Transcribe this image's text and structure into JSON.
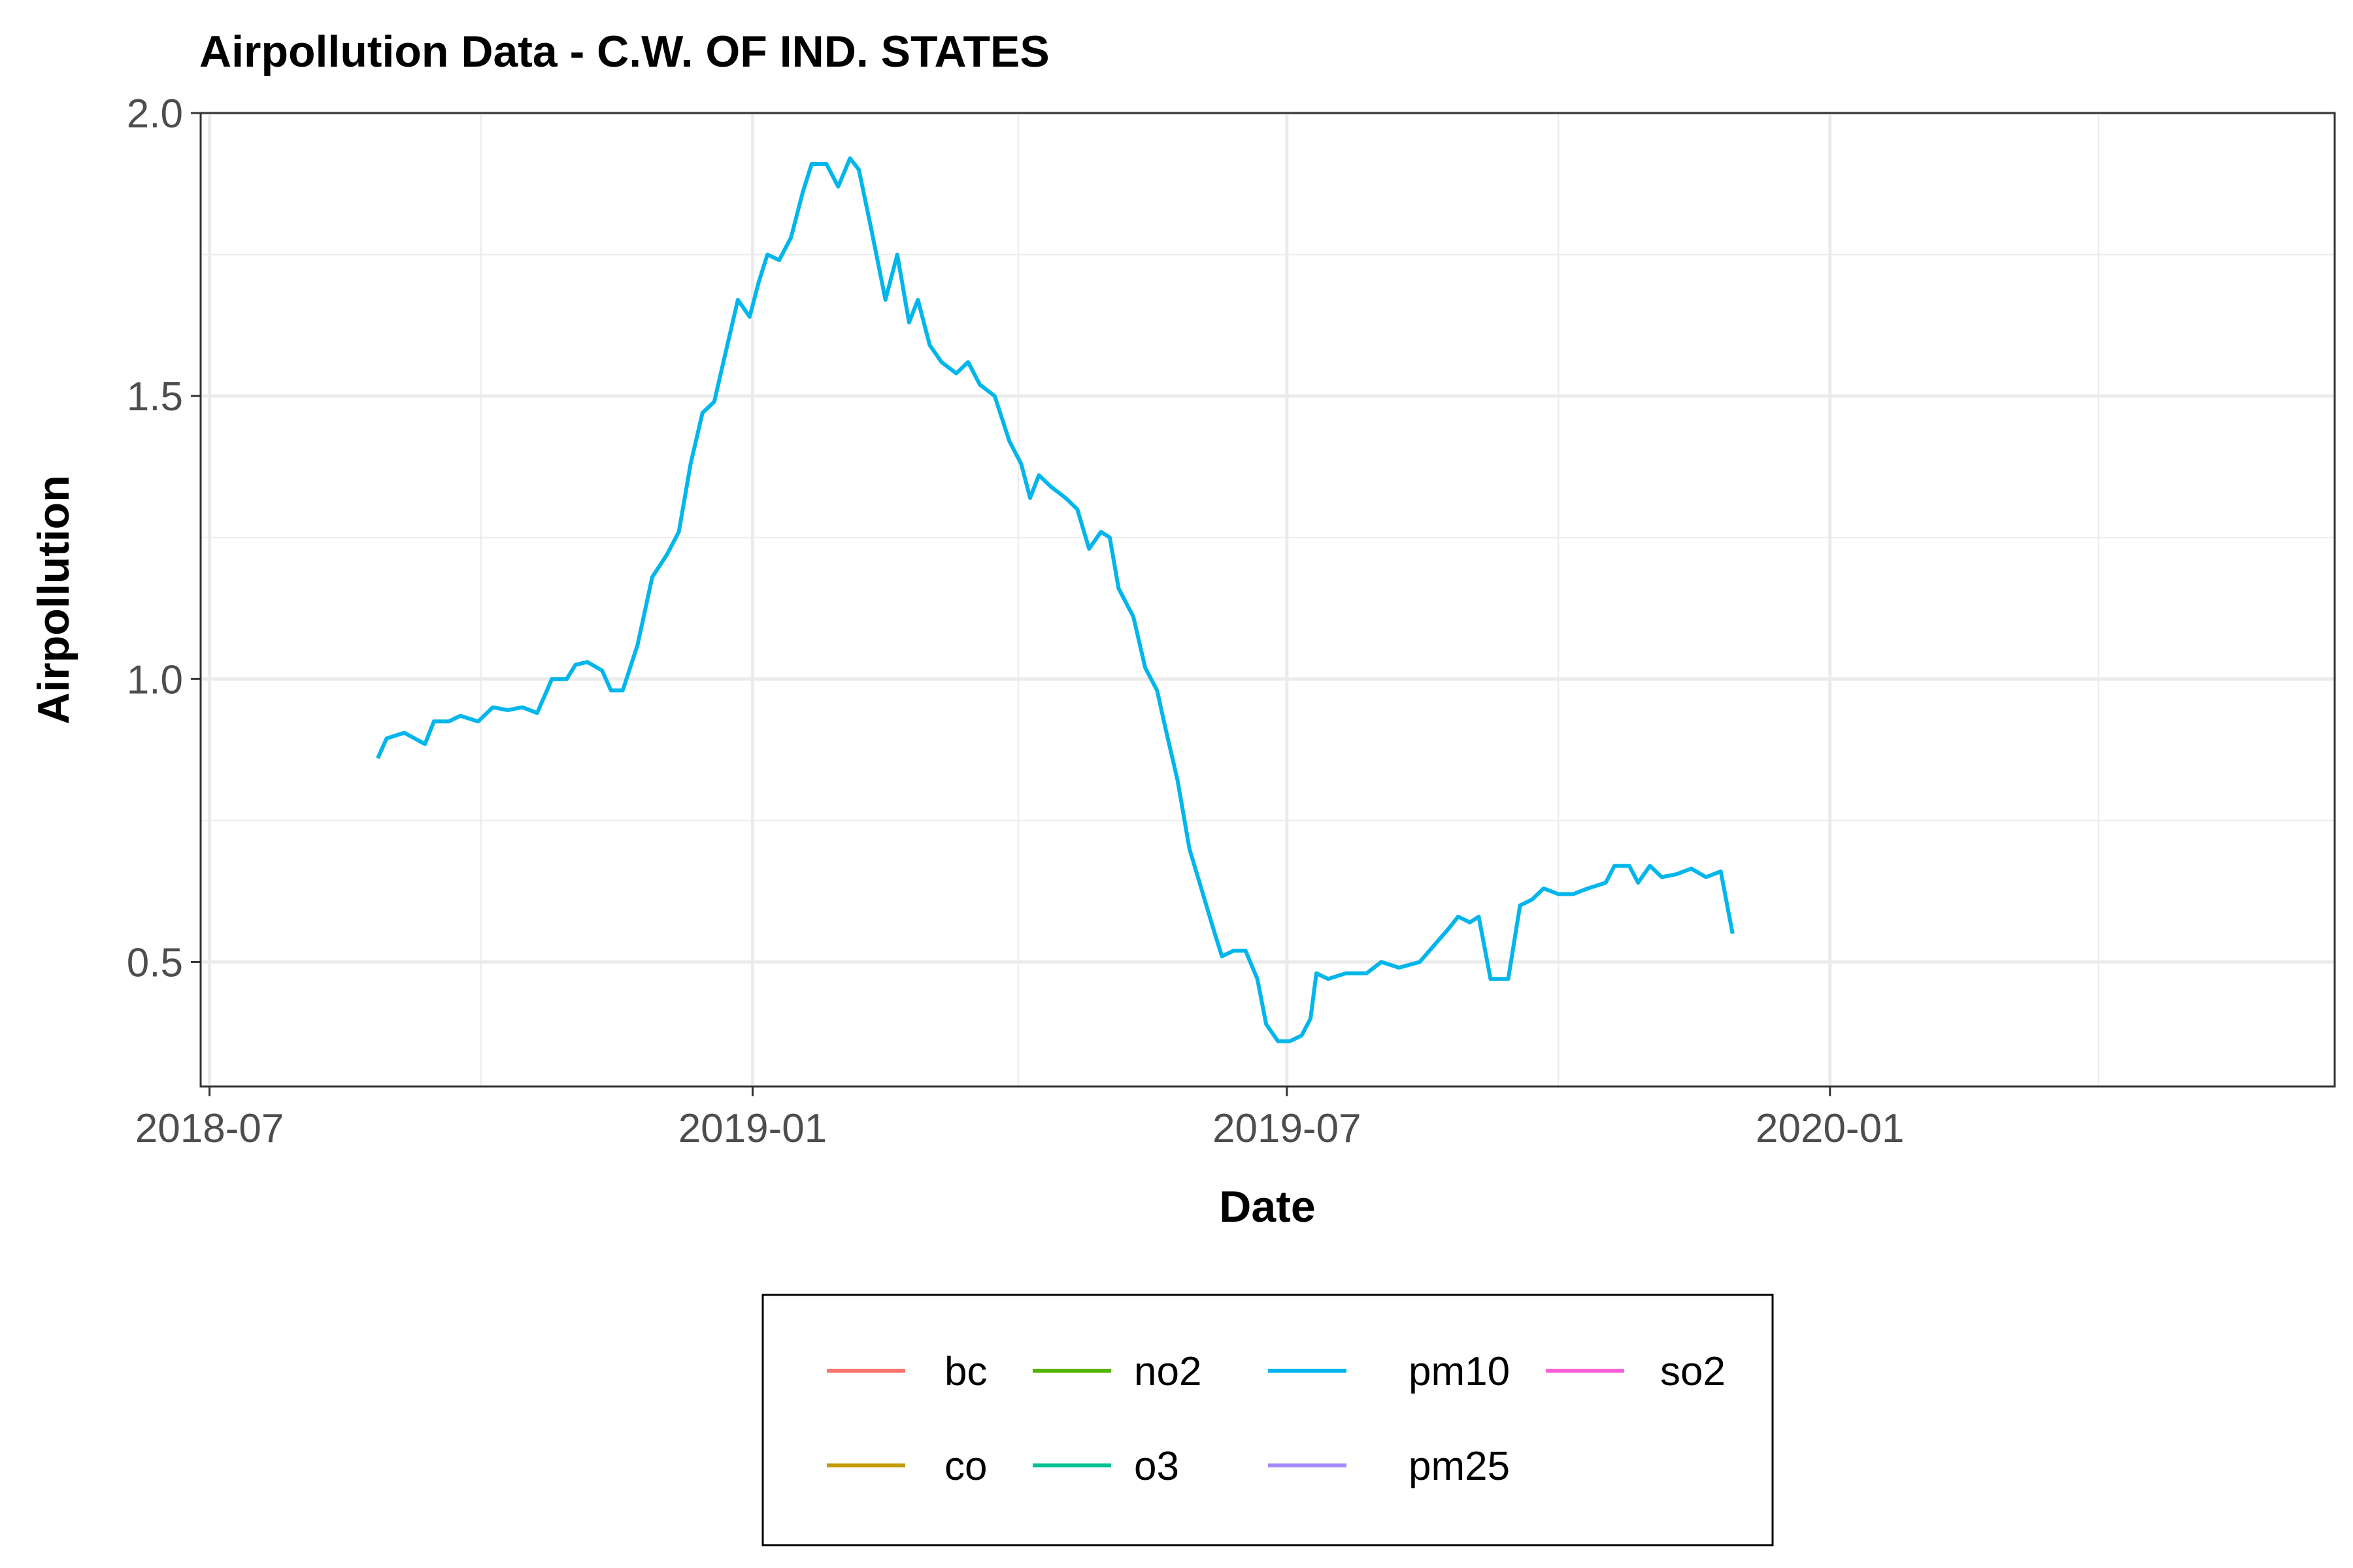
{
  "chart_data": {
    "type": "line",
    "title": "Airpollution Data - C.W. OF IND. STATES",
    "xlabel": "Date",
    "ylabel": "Airpollution",
    "x_type": "date",
    "xlim": [
      "2018-06-28",
      "2020-06-20"
    ],
    "ylim": [
      0.28,
      2.0
    ],
    "x_ticks": [
      {
        "date": "2018-07-01",
        "label": "2018-07"
      },
      {
        "date": "2019-01-01",
        "label": "2019-01"
      },
      {
        "date": "2019-07-01",
        "label": "2019-07"
      },
      {
        "date": "2020-01-01",
        "label": "2020-01"
      }
    ],
    "x_minor_ticks": [
      "2018-10-01",
      "2019-04-01",
      "2019-10-01",
      "2020-04-01"
    ],
    "y_ticks": [
      0.5,
      1.0,
      1.5,
      2.0
    ],
    "y_tick_labels": [
      "0.5",
      "1.0",
      "1.5",
      "2.0"
    ],
    "y_minor_ticks": [
      0.75,
      1.25,
      1.75
    ],
    "grid": true,
    "legend": {
      "position": "bottom",
      "ncol": 4,
      "entries": [
        {
          "name": "bc",
          "color": "#F8766D"
        },
        {
          "name": "co",
          "color": "#C49A00"
        },
        {
          "name": "no2",
          "color": "#53B400"
        },
        {
          "name": "o3",
          "color": "#00C094"
        },
        {
          "name": "pm10",
          "color": "#00B6EB"
        },
        {
          "name": "pm25",
          "color": "#A58AFF"
        },
        {
          "name": "so2",
          "color": "#FB61D7"
        }
      ]
    },
    "series": [
      {
        "name": "pm10",
        "color": "#00B6EB",
        "points": [
          [
            "2018-08-27",
            0.86
          ],
          [
            "2018-08-30",
            0.895
          ],
          [
            "2018-09-05",
            0.905
          ],
          [
            "2018-09-12",
            0.885
          ],
          [
            "2018-09-15",
            0.925
          ],
          [
            "2018-09-20",
            0.925
          ],
          [
            "2018-09-24",
            0.935
          ],
          [
            "2018-09-30",
            0.925
          ],
          [
            "2018-10-05",
            0.95
          ],
          [
            "2018-10-10",
            0.945
          ],
          [
            "2018-10-15",
            0.95
          ],
          [
            "2018-10-20",
            0.94
          ],
          [
            "2018-10-25",
            1.0
          ],
          [
            "2018-10-30",
            1.0
          ],
          [
            "2018-11-02",
            1.025
          ],
          [
            "2018-11-06",
            1.03
          ],
          [
            "2018-11-11",
            1.015
          ],
          [
            "2018-11-14",
            0.98
          ],
          [
            "2018-11-18",
            0.98
          ],
          [
            "2018-11-23",
            1.06
          ],
          [
            "2018-11-28",
            1.18
          ],
          [
            "2018-12-03",
            1.22
          ],
          [
            "2018-12-07",
            1.26
          ],
          [
            "2018-12-11",
            1.38
          ],
          [
            "2018-12-15",
            1.47
          ],
          [
            "2018-12-19",
            1.49
          ],
          [
            "2018-12-23",
            1.58
          ],
          [
            "2018-12-27",
            1.67
          ],
          [
            "2018-12-31",
            1.64
          ],
          [
            "2019-01-03",
            1.7
          ],
          [
            "2019-01-06",
            1.75
          ],
          [
            "2019-01-10",
            1.74
          ],
          [
            "2019-01-14",
            1.78
          ],
          [
            "2019-01-18",
            1.86
          ],
          [
            "2019-01-21",
            1.91
          ],
          [
            "2019-01-26",
            1.91
          ],
          [
            "2019-01-30",
            1.87
          ],
          [
            "2019-02-03",
            1.92
          ],
          [
            "2019-02-06",
            1.9
          ],
          [
            "2019-02-10",
            1.8
          ],
          [
            "2019-02-15",
            1.67
          ],
          [
            "2019-02-19",
            1.75
          ],
          [
            "2019-02-23",
            1.63
          ],
          [
            "2019-02-26",
            1.67
          ],
          [
            "2019-03-02",
            1.59
          ],
          [
            "2019-03-06",
            1.56
          ],
          [
            "2019-03-11",
            1.54
          ],
          [
            "2019-03-15",
            1.56
          ],
          [
            "2019-03-19",
            1.52
          ],
          [
            "2019-03-24",
            1.5
          ],
          [
            "2019-03-29",
            1.42
          ],
          [
            "2019-04-02",
            1.38
          ],
          [
            "2019-04-05",
            1.32
          ],
          [
            "2019-04-08",
            1.36
          ],
          [
            "2019-04-12",
            1.34
          ],
          [
            "2019-04-17",
            1.32
          ],
          [
            "2019-04-21",
            1.3
          ],
          [
            "2019-04-25",
            1.23
          ],
          [
            "2019-04-29",
            1.26
          ],
          [
            "2019-05-02",
            1.25
          ],
          [
            "2019-05-05",
            1.16
          ],
          [
            "2019-05-10",
            1.11
          ],
          [
            "2019-05-14",
            1.02
          ],
          [
            "2019-05-18",
            0.98
          ],
          [
            "2019-05-21",
            0.91
          ],
          [
            "2019-05-25",
            0.82
          ],
          [
            "2019-05-29",
            0.7
          ],
          [
            "2019-06-02",
            0.63
          ],
          [
            "2019-06-06",
            0.56
          ],
          [
            "2019-06-09",
            0.51
          ],
          [
            "2019-06-13",
            0.52
          ],
          [
            "2019-06-17",
            0.52
          ],
          [
            "2019-06-21",
            0.47
          ],
          [
            "2019-06-24",
            0.39
          ],
          [
            "2019-06-28",
            0.36
          ],
          [
            "2019-07-02",
            0.36
          ],
          [
            "2019-07-06",
            0.37
          ],
          [
            "2019-07-09",
            0.4
          ],
          [
            "2019-07-11",
            0.48
          ],
          [
            "2019-07-15",
            0.47
          ],
          [
            "2019-07-21",
            0.48
          ],
          [
            "2019-07-28",
            0.48
          ],
          [
            "2019-08-02",
            0.5
          ],
          [
            "2019-08-08",
            0.49
          ],
          [
            "2019-08-15",
            0.5
          ],
          [
            "2019-08-20",
            0.53
          ],
          [
            "2019-08-25",
            0.56
          ],
          [
            "2019-08-28",
            0.58
          ],
          [
            "2019-09-01",
            0.57
          ],
          [
            "2019-09-04",
            0.58
          ],
          [
            "2019-09-08",
            0.47
          ],
          [
            "2019-09-14",
            0.47
          ],
          [
            "2019-09-18",
            0.6
          ],
          [
            "2019-09-22",
            0.61
          ],
          [
            "2019-09-26",
            0.63
          ],
          [
            "2019-10-01",
            0.62
          ],
          [
            "2019-10-06",
            0.62
          ],
          [
            "2019-10-11",
            0.63
          ],
          [
            "2019-10-17",
            0.64
          ],
          [
            "2019-10-20",
            0.67
          ],
          [
            "2019-10-25",
            0.67
          ],
          [
            "2019-10-28",
            0.64
          ],
          [
            "2019-11-01",
            0.67
          ],
          [
            "2019-11-05",
            0.65
          ],
          [
            "2019-11-10",
            0.655
          ],
          [
            "2019-11-15",
            0.665
          ],
          [
            "2019-11-20",
            0.65
          ],
          [
            "2019-11-25",
            0.66
          ],
          [
            "2019-11-29",
            0.55
          ]
        ]
      }
    ]
  }
}
